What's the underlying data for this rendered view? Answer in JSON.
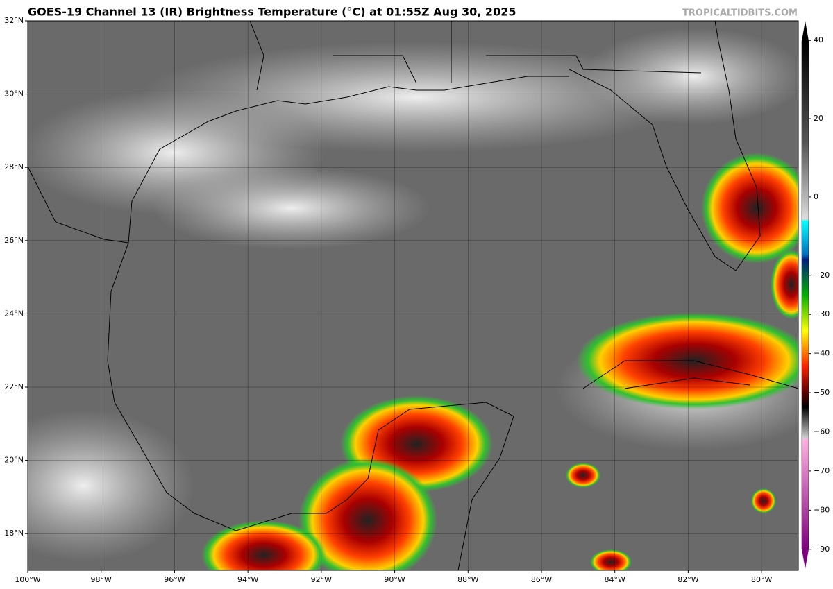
{
  "title": "GOES-19 Channel 13 (IR) Brightness Temperature (°C) at 01:55Z Aug 30, 2025",
  "credit": "TROPICALTIDBITS.COM",
  "map": {
    "xlim": [
      -100,
      -79
    ],
    "ylim": [
      17,
      32
    ],
    "xticks": [
      {
        "value": -100,
        "label": "100°W"
      },
      {
        "value": -98,
        "label": "98°W"
      },
      {
        "value": -96,
        "label": "96°W"
      },
      {
        "value": -94,
        "label": "94°W"
      },
      {
        "value": -92,
        "label": "92°W"
      },
      {
        "value": -90,
        "label": "90°W"
      },
      {
        "value": -88,
        "label": "88°W"
      },
      {
        "value": -86,
        "label": "86°W"
      },
      {
        "value": -84,
        "label": "84°W"
      },
      {
        "value": -82,
        "label": "82°W"
      },
      {
        "value": -80,
        "label": "80°W"
      }
    ],
    "yticks": [
      {
        "value": 18,
        "label": "18°N"
      },
      {
        "value": 20,
        "label": "20°N"
      },
      {
        "value": 22,
        "label": "22°N"
      },
      {
        "value": 24,
        "label": "24°N"
      },
      {
        "value": 26,
        "label": "26°N"
      },
      {
        "value": 28,
        "label": "28°N"
      },
      {
        "value": 30,
        "label": "30°N"
      },
      {
        "value": 32,
        "label": "32°N"
      }
    ]
  },
  "colorbar": {
    "ylim": [
      -95,
      45
    ],
    "yticks": [
      40,
      20,
      0,
      {
        "value": -20,
        "label": "−20"
      },
      {
        "value": -30,
        "label": "−30"
      },
      {
        "value": -40,
        "label": "−40"
      },
      {
        "value": -50,
        "label": "−50"
      },
      {
        "value": -60,
        "label": "−60"
      },
      {
        "value": -70,
        "label": "−70"
      },
      {
        "value": -80,
        "label": "−80"
      },
      {
        "value": -90,
        "label": "−90"
      }
    ]
  }
}
